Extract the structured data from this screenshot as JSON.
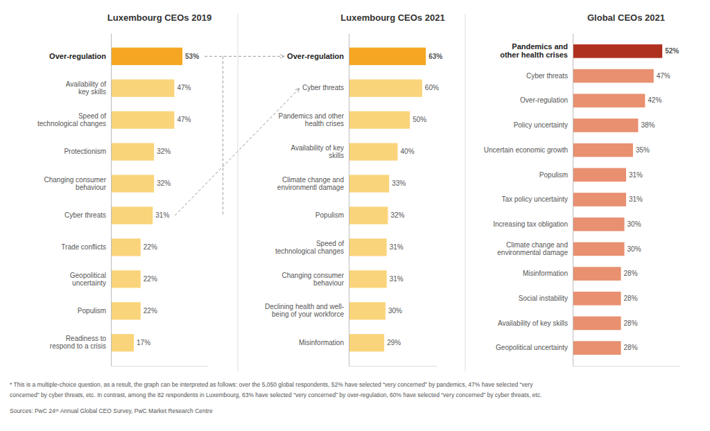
{
  "chart_data": [
    {
      "type": "bar",
      "orientation": "horizontal",
      "title": "Luxembourg CEOs 2019",
      "categories": [
        "Over-regulation",
        "Availability of\nkey skills",
        "Speed of\ntechnological changes",
        "Protectionism",
        "Changing consumer\nbehaviour",
        "Cyber threats",
        "Trade conflicts",
        "Geopolitical\nuncertainty",
        "Populism",
        "Readiness to\nrespond to a crisis"
      ],
      "values": [
        53,
        47,
        47,
        32,
        32,
        31,
        22,
        22,
        22,
        17
      ],
      "value_labels": [
        "53%",
        "47%",
        "47%",
        "32%",
        "32%",
        "31%",
        "22%",
        "22%",
        "22%",
        "17%"
      ],
      "colors": [
        "#F5A623",
        "#FAD47A",
        "#FAD47A",
        "#FAD47A",
        "#FAD47A",
        "#FAD47A",
        "#FAD47A",
        "#FAD47A",
        "#FAD47A",
        "#FAD47A"
      ],
      "xlim": [
        0,
        72
      ],
      "data_labels": true,
      "tick_labels": "y",
      "grid": false,
      "annotations": [
        "* This is a multiple-choice question, as a result, the graph can be interpreted as follows: over the 5,050 global respondents, 52% have selected “very concerned” by pandemics, 47% have selected “very",
        "concerned” by cyber threats, etc. In contrast, among the 82 respondents in Luxembourg, 63% have selected “very concerned” by over-regulation, 60% have selected “very concerned” by cyber threats, etc.",
        "Sources: PwC 24ᵗʰ Annual Global CEO Survey, PwC Market Research Centre"
      ]
    },
    {
      "type": "bar",
      "orientation": "horizontal",
      "title": "Luxembourg CEOs 2021",
      "categories": [
        "Over-regulation",
        "Cyber threats",
        "Pandemics and other\nhealth crises",
        "Availability of key\nskills",
        "Climate change and\nenvironmentl damage",
        "Populism",
        "Speed of\ntechnological changes",
        "Changing consumer\nbehaviour",
        "Declining health and well-\nbeing of your workforce",
        "Misinformation"
      ],
      "values": [
        63,
        60,
        50,
        40,
        33,
        32,
        31,
        31,
        30,
        29
      ],
      "value_labels": [
        "63%",
        "60%",
        "50%",
        "40%",
        "33%",
        "32%",
        "31%",
        "31%",
        "30%",
        "29%"
      ],
      "colors": [
        "#F5A623",
        "#FAD47A",
        "#FAD47A",
        "#FAD47A",
        "#FAD47A",
        "#FAD47A",
        "#FAD47A",
        "#FAD47A",
        "#FAD47A",
        "#FAD47A"
      ],
      "xlim": [
        0,
        72
      ],
      "data_labels": true,
      "tick_labels": "y",
      "grid": false
    },
    {
      "type": "bar",
      "orientation": "horizontal",
      "title": "Global CEOs 2021",
      "categories": [
        "Pandemics and\nother health crises",
        "Cyber threats",
        "Over-regulation",
        "Policy uncertainty",
        "Uncertain economic growth",
        "Populism",
        "Tax policy uncertainty",
        "Increasing tax obligation",
        "Climate change and\nenvironmental damage",
        "Misinformation",
        "Social instability",
        "Availability of key skills",
        "Geopolitical uncertainty"
      ],
      "values": [
        52,
        47,
        42,
        38,
        35,
        31,
        31,
        30,
        30,
        28,
        28,
        28,
        28
      ],
      "value_labels": [
        "52%",
        "47%",
        "42%",
        "38%",
        "35%",
        "31%",
        "31%",
        "30%",
        "30%",
        "28%",
        "28%",
        "28%",
        "28%"
      ],
      "colors": [
        "#B03020",
        "#E89070",
        "#E89070",
        "#E89070",
        "#E89070",
        "#E89070",
        "#E89070",
        "#E89070",
        "#E89070",
        "#E89070",
        "#E89070",
        "#E89070",
        "#E89070"
      ],
      "xlim": [
        0,
        62
      ],
      "data_labels": true,
      "tick_labels": "y",
      "grid": false
    }
  ]
}
